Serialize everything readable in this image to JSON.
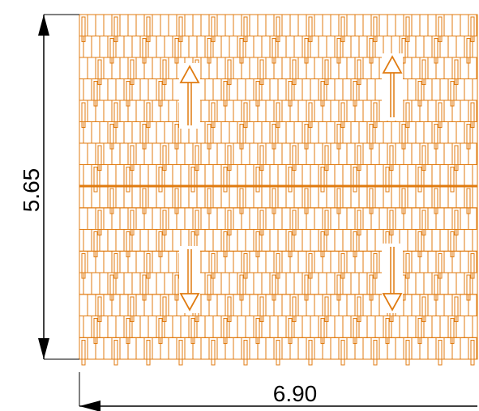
{
  "drawing": {
    "dimensions": {
      "height_value": "5.65",
      "width_value": "6.90"
    },
    "roof": {
      "sections": 2,
      "tile_courses_per_section": 8,
      "slope_arrows": [
        {
          "direction": "up"
        },
        {
          "direction": "up"
        },
        {
          "direction": "down"
        },
        {
          "direction": "down"
        }
      ]
    },
    "colors": {
      "roof_line": "#E07B10",
      "dimension_line": "#000000",
      "background": "#FFFFFF"
    }
  }
}
